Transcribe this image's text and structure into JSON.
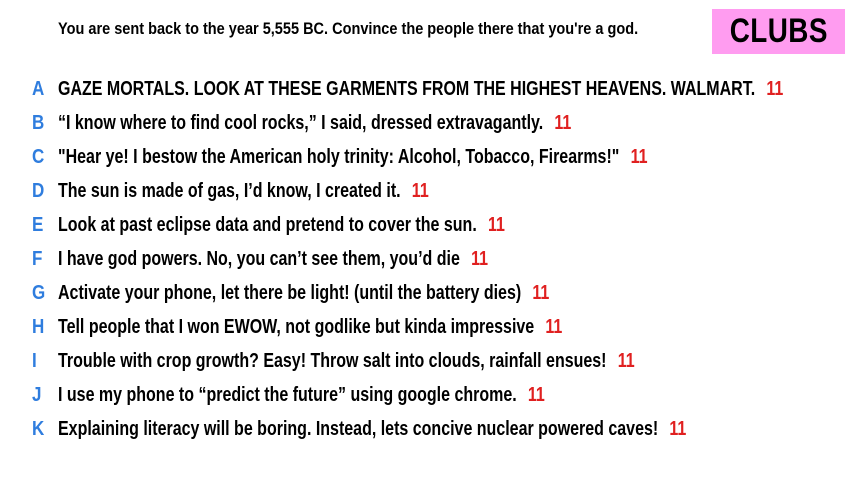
{
  "prompt": "You are sent back to the year 5,555 BC. Convince the people there that you're a god.",
  "badge": "CLUBS",
  "colors": {
    "badge_bg": "#ff9cf0",
    "letter": "#2f7dde",
    "score": "#e02020"
  },
  "entries": [
    {
      "letter": "A",
      "text": "GAZE MORTALS. LOOK AT THESE GARMENTS FROM THE HIGHEST HEAVENS. WALMART.",
      "score": "11"
    },
    {
      "letter": "B",
      "text": "“I know where to find cool rocks,” I said, dressed extravagantly.",
      "score": "11"
    },
    {
      "letter": "C",
      "text": "\"Hear ye! I bestow the American holy trinity: Alcohol, Tobacco, Firearms!\"",
      "score": "11"
    },
    {
      "letter": "D",
      "text": "The sun is made of gas, I’d know, I created it.",
      "score": "11"
    },
    {
      "letter": "E",
      "text": "Look at past eclipse data and pretend to cover the sun.",
      "score": "11"
    },
    {
      "letter": "F",
      "text": "I have god powers. No, you can’t see them, you’d die",
      "score": "11"
    },
    {
      "letter": "G",
      "text": "Activate your phone, let there be light! (until the battery dies)",
      "score": "11"
    },
    {
      "letter": "H",
      "text": "Tell people that I won EWOW, not godlike but kinda impressive",
      "score": "11"
    },
    {
      "letter": "I",
      "text": "Trouble with crop growth? Easy! Throw salt into clouds, rainfall ensues!",
      "score": "11"
    },
    {
      "letter": "J",
      "text": "I use my phone to “predict the future” using google chrome.",
      "score": "11"
    },
    {
      "letter": "K",
      "text": "Explaining literacy will be boring. Instead, lets concive nuclear powered caves!",
      "score": "11"
    }
  ]
}
